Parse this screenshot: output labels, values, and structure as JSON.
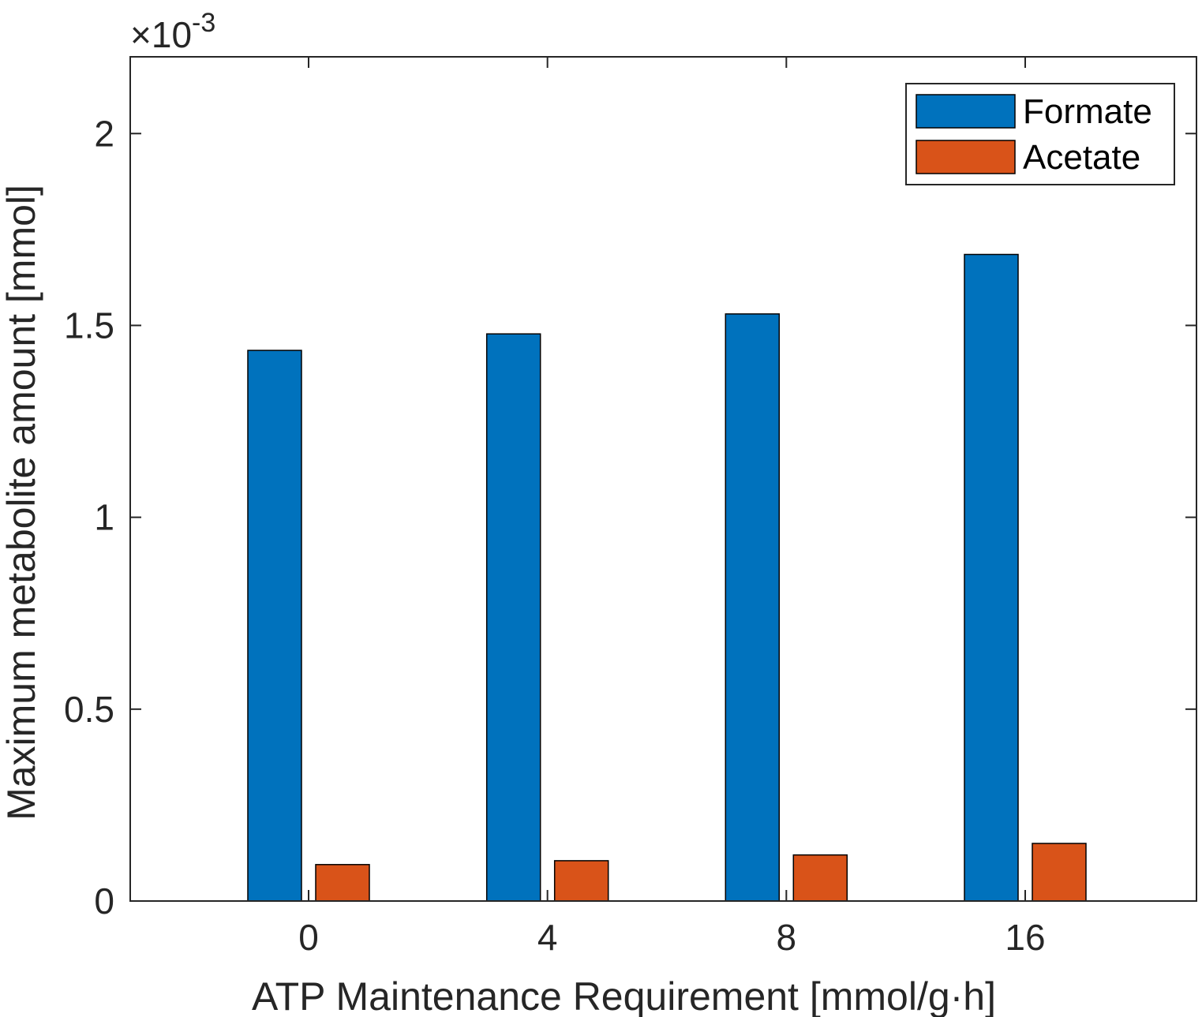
{
  "chart_data": {
    "type": "bar",
    "xlabel": "ATP Maintenance Requirement [mmol/g·h]",
    "ylabel": "Maximum metabolite amount [mmol]",
    "exponent_prefix": "×10",
    "exponent_power": "-3",
    "categories": [
      "0",
      "4",
      "8",
      "16"
    ],
    "ylim": [
      0,
      2.2
    ],
    "yticks": [
      0,
      0.5,
      1,
      1.5,
      2
    ],
    "ytick_labels": [
      "0",
      "0.5",
      "1",
      "1.5",
      "2"
    ],
    "series": [
      {
        "name": "Formate",
        "color": "#0072BD",
        "values": [
          1.435,
          1.478,
          1.53,
          1.685
        ]
      },
      {
        "name": "Acetate",
        "color": "#D95319",
        "values": [
          0.095,
          0.105,
          0.12,
          0.15
        ]
      }
    ],
    "legend_position": "top-right",
    "grid": false
  }
}
